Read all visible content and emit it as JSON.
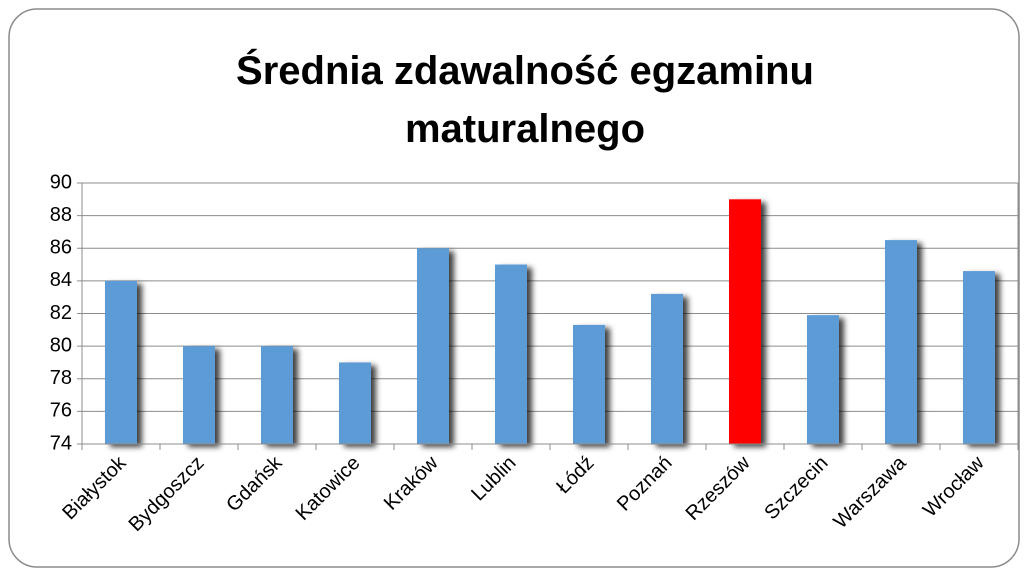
{
  "chart_data": {
    "type": "bar",
    "title_lines": [
      "Średnia zdawalność egzaminu",
      "maturalnego"
    ],
    "categories": [
      "Białystok",
      "Bydgoszcz",
      "Gdańsk",
      "Katowice",
      "Kraków",
      "Lublin",
      "Łódź",
      "Poznań",
      "Rzeszów",
      "Szczecin",
      "Warszawa",
      "Wrocław"
    ],
    "values": [
      84,
      80,
      80,
      79,
      86,
      85,
      81.3,
      83.2,
      89,
      81.9,
      86.5,
      84.6
    ],
    "colors": [
      "#5b9bd5",
      "#5b9bd5",
      "#5b9bd5",
      "#5b9bd5",
      "#5b9bd5",
      "#5b9bd5",
      "#5b9bd5",
      "#5b9bd5",
      "#ff0000",
      "#5b9bd5",
      "#5b9bd5",
      "#5b9bd5"
    ],
    "ylim": [
      74,
      90
    ],
    "yticks": [
      74,
      76,
      78,
      80,
      82,
      84,
      86,
      88,
      90
    ],
    "grid": true
  }
}
